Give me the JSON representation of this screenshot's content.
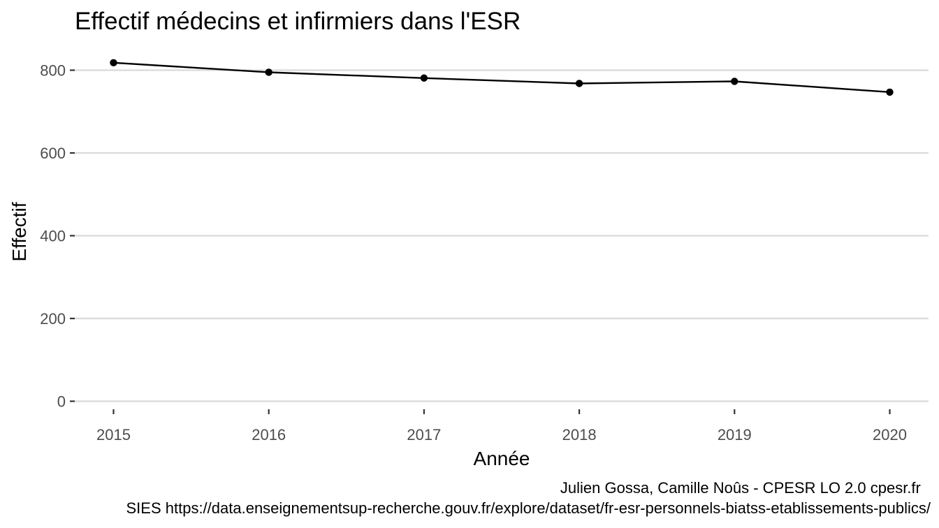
{
  "chart_data": {
    "type": "line",
    "title": "Effectif médecins et infirmiers dans l'ESR",
    "xlabel": "Année",
    "ylabel": "Effectif",
    "x": [
      2015,
      2016,
      2017,
      2018,
      2019,
      2020
    ],
    "x_tick_labels": [
      "2015",
      "2016",
      "2017",
      "2018",
      "2019",
      "2020"
    ],
    "y_ticks": [
      0,
      200,
      400,
      600,
      800
    ],
    "y_tick_labels": [
      "0",
      "200",
      "400",
      "600",
      "800"
    ],
    "ylim": [
      0,
      860
    ],
    "xlim": [
      2014.75,
      2020.25
    ],
    "series": [
      {
        "values": [
          818,
          795,
          781,
          768,
          773,
          747
        ],
        "color": "#000000"
      }
    ],
    "grid": "horizontal major lines only",
    "legend": "none"
  },
  "captions": {
    "line1": "Julien Gossa, Camille Noûs - CPESR LO 2.0 cpesr.fr ",
    "line2": "SIES https://data.enseignementsup-recherche.gouv.fr/explore/dataset/fr-esr-personnels-biatss-etablissements-publics/"
  }
}
